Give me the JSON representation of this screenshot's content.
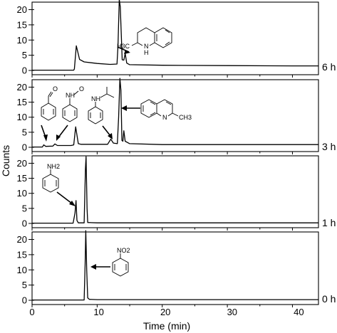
{
  "chart_data": {
    "type": "line",
    "title": "",
    "xlabel": "Time (min)",
    "ylabel": "Counts",
    "xlim": [
      0,
      44
    ],
    "ylim": [
      0,
      22
    ],
    "x_ticks": [
      0,
      10,
      20,
      30,
      40
    ],
    "x_tick_labels": [
      "0",
      "10",
      "20",
      "30",
      "40"
    ],
    "y_ticks": [
      0,
      5,
      10,
      15,
      20
    ],
    "y_tick_labels": [
      "0",
      "5",
      "10",
      "15",
      "20"
    ],
    "grid": false,
    "legend": "none",
    "panels": [
      {
        "series_label": "6 h",
        "points": [
          [
            0,
            0.1
          ],
          [
            6.4,
            0.1
          ],
          [
            6.5,
            0.5
          ],
          [
            6.8,
            8.1
          ],
          [
            7.3,
            3.6
          ],
          [
            8,
            2.8
          ],
          [
            10,
            2.3
          ],
          [
            12,
            2.0
          ],
          [
            13.05,
            2.1
          ],
          [
            13.2,
            8
          ],
          [
            13.4,
            23.3
          ],
          [
            13.55,
            21
          ],
          [
            13.7,
            12
          ],
          [
            13.85,
            3.5
          ],
          [
            14.1,
            3.4
          ],
          [
            14.3,
            5.6
          ],
          [
            14.55,
            2.4
          ],
          [
            15,
            1.9
          ],
          [
            20,
            1.7
          ],
          [
            30,
            1.6
          ],
          [
            40,
            1.5
          ],
          [
            44,
            1.5
          ]
        ],
        "annotations": [
          {
            "label": "2-methyl-1,2,3,4-tetrahydroquinoline",
            "text": [
              "H3C",
              "N",
              "H"
            ],
            "arrow_target_x": 14.3
          }
        ]
      },
      {
        "series_label": "3 h",
        "points": [
          [
            0,
            0.1
          ],
          [
            1.6,
            0.1
          ],
          [
            1.8,
            0.8
          ],
          [
            2.1,
            0.3
          ],
          [
            3.2,
            0.4
          ],
          [
            3.5,
            1.1
          ],
          [
            3.9,
            0.6
          ],
          [
            6,
            0.6
          ],
          [
            6.4,
            0.8
          ],
          [
            6.7,
            6.8
          ],
          [
            7.1,
            1.2
          ],
          [
            7.5,
            1.0
          ],
          [
            11.6,
            1.0
          ],
          [
            12.1,
            2.7
          ],
          [
            12.5,
            1.4
          ],
          [
            13.1,
            1.2
          ],
          [
            13.3,
            10
          ],
          [
            13.5,
            22.9
          ],
          [
            13.65,
            19
          ],
          [
            13.8,
            2.3
          ],
          [
            13.95,
            2.0
          ],
          [
            14.1,
            5.5
          ],
          [
            14.3,
            2.0
          ],
          [
            15,
            1.2
          ],
          [
            20,
            0.9
          ],
          [
            30,
            0.9
          ],
          [
            44,
            0.9
          ]
        ],
        "annotations": [
          {
            "label": "nitrosobenzene",
            "text": [
              "O"
            ],
            "arrow_target_x": 1.8
          },
          {
            "label": "N-phenylhydroxylamine",
            "text": [
              "NH",
              "O"
            ],
            "arrow_target_x": 3.5
          },
          {
            "label": "N-isopropylaniline",
            "text": [
              "NH"
            ],
            "arrow_target_x": 12.1
          },
          {
            "label": "2-methylquinoline",
            "text": [
              "N",
              "CH3"
            ],
            "arrow_target_x": 13.5
          }
        ]
      },
      {
        "series_label": "1 h",
        "points": [
          [
            0,
            0.1
          ],
          [
            6.3,
            0.1
          ],
          [
            6.6,
            3.5
          ],
          [
            6.75,
            7.6
          ],
          [
            6.9,
            1.0
          ],
          [
            7.1,
            0.2
          ],
          [
            8.0,
            0.2
          ],
          [
            8.2,
            18
          ],
          [
            8.3,
            22.2
          ],
          [
            8.45,
            5
          ],
          [
            8.55,
            0.3
          ],
          [
            10,
            0.2
          ],
          [
            44,
            0.2
          ]
        ],
        "annotations": [
          {
            "label": "aniline",
            "text": [
              "NH2"
            ],
            "arrow_target_x": 6.75
          }
        ]
      },
      {
        "series_label": "0 h",
        "points": [
          [
            0,
            0.1
          ],
          [
            8.0,
            0.1
          ],
          [
            8.15,
            12
          ],
          [
            8.25,
            22.9
          ],
          [
            8.4,
            10
          ],
          [
            8.55,
            0.8
          ],
          [
            8.8,
            0.3
          ],
          [
            10,
            0.2
          ],
          [
            44,
            0.2
          ]
        ],
        "annotations": [
          {
            "label": "nitrobenzene",
            "text": [
              "NO2"
            ],
            "arrow_target_x": 8.3
          }
        ]
      }
    ]
  }
}
